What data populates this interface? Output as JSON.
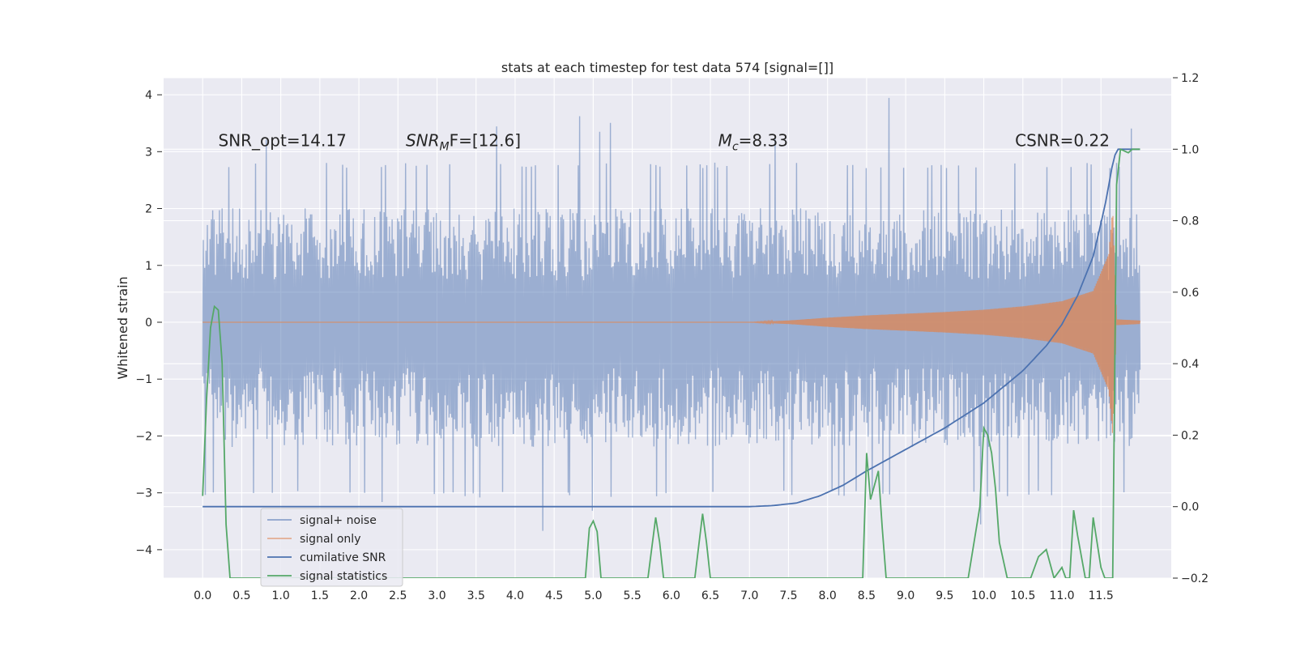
{
  "chart_data": {
    "type": "line",
    "title": "stats at each timestep for test data 574 [signal=[]]",
    "ylabel": "Whitened strain",
    "xlabel": "",
    "xlim": [
      -0.5,
      12.4
    ],
    "ylim": [
      -4.5,
      4.3
    ],
    "y2lim": [
      -0.2,
      1.2
    ],
    "x_ticks": [
      "0.0",
      "0.5",
      "1.0",
      "1.5",
      "2.0",
      "2.5",
      "3.0",
      "3.5",
      "4.0",
      "4.5",
      "5.0",
      "5.5",
      "6.0",
      "6.5",
      "7.0",
      "7.5",
      "8.0",
      "8.5",
      "9.0",
      "9.5",
      "10.0",
      "10.5",
      "11.0",
      "11.5"
    ],
    "y_ticks": [
      "4",
      "3",
      "2",
      "1",
      "0",
      "−1",
      "−2",
      "−3",
      "−4"
    ],
    "y2_ticks": [
      "1.2",
      "1.0",
      "0.8",
      "0.6",
      "0.4",
      "0.2",
      "0.0",
      "−0.2"
    ],
    "grid": true,
    "legend_position": "lower-left",
    "annotations": [
      {
        "text": "SNR_opt=14.17",
        "x": 0.2,
        "y": 3.1
      },
      {
        "text_main": "SNR",
        "text_sub": "M",
        "text_rest": "F=[12.6]",
        "x": 2.6,
        "y": 3.1
      },
      {
        "text_main": "M",
        "text_sub": "c",
        "text_rest": "=8.33",
        "x": 6.6,
        "y": 3.1
      },
      {
        "text": "CSNR=0.22",
        "x": 10.4,
        "y": 3.1
      }
    ],
    "series": [
      {
        "name": "signal+ noise",
        "color": "#4c72b0",
        "axis": "left",
        "x_range": [
          0.0,
          12.0
        ],
        "band_min": -2.3,
        "band_max": 2.1,
        "peak_max": 3.95,
        "peak_min": -3.7
      },
      {
        "name": "signal only",
        "color": "#dd8452",
        "axis": "left",
        "x": [
          0.0,
          7.0,
          7.5,
          8.0,
          8.5,
          9.0,
          9.5,
          10.0,
          10.5,
          11.0,
          11.4,
          11.6,
          11.65,
          11.7,
          12.0
        ],
        "envelope": [
          0.0,
          0.0,
          0.03,
          0.08,
          0.12,
          0.15,
          0.18,
          0.22,
          0.28,
          0.37,
          0.55,
          1.2,
          2.0,
          0.05,
          0.03
        ]
      },
      {
        "name": "cumilative SNR",
        "color": "#4c72b0",
        "axis": "right",
        "x": [
          0.0,
          7.0,
          7.3,
          7.6,
          7.9,
          8.2,
          8.5,
          9.0,
          9.5,
          10.0,
          10.5,
          10.8,
          11.0,
          11.2,
          11.4,
          11.55,
          11.65,
          11.7,
          12.0
        ],
        "y": [
          0.0,
          0.0,
          0.003,
          0.01,
          0.03,
          0.06,
          0.1,
          0.16,
          0.22,
          0.29,
          0.38,
          0.45,
          0.51,
          0.59,
          0.7,
          0.84,
          0.96,
          1.0,
          1.0
        ]
      },
      {
        "name": "signal statistics",
        "color": "#55a868",
        "axis": "right",
        "x": [
          0.0,
          0.05,
          0.1,
          0.15,
          0.2,
          0.25,
          0.3,
          0.35,
          0.4,
          4.9,
          4.95,
          5.0,
          5.05,
          5.1,
          5.7,
          5.8,
          5.85,
          5.9,
          6.3,
          6.4,
          6.45,
          6.5,
          8.45,
          8.5,
          8.55,
          8.6,
          8.65,
          8.7,
          8.75,
          9.8,
          9.95,
          10.0,
          10.05,
          10.1,
          10.15,
          10.2,
          10.3,
          10.6,
          10.7,
          10.8,
          10.9,
          11.0,
          11.05,
          11.1,
          11.15,
          11.2,
          11.3,
          11.35,
          11.4,
          11.45,
          11.5,
          11.55,
          11.6,
          11.65,
          11.7,
          11.75,
          11.85,
          11.9,
          11.95,
          12.0
        ],
        "y": [
          0.03,
          0.3,
          0.5,
          0.56,
          0.55,
          0.4,
          -0.05,
          -0.2,
          -0.2,
          -0.2,
          -0.06,
          -0.04,
          -0.07,
          -0.2,
          -0.2,
          -0.03,
          -0.1,
          -0.2,
          -0.2,
          -0.02,
          -0.1,
          -0.2,
          -0.2,
          0.15,
          0.02,
          0.06,
          0.1,
          -0.06,
          -0.2,
          -0.2,
          0.0,
          0.22,
          0.2,
          0.15,
          0.05,
          -0.1,
          -0.2,
          -0.2,
          -0.14,
          -0.12,
          -0.2,
          -0.17,
          -0.2,
          -0.2,
          -0.01,
          -0.08,
          -0.2,
          -0.2,
          -0.03,
          -0.1,
          -0.17,
          -0.2,
          -0.2,
          -0.2,
          0.9,
          1.0,
          0.99,
          1.0,
          1.0,
          1.0
        ]
      }
    ]
  }
}
